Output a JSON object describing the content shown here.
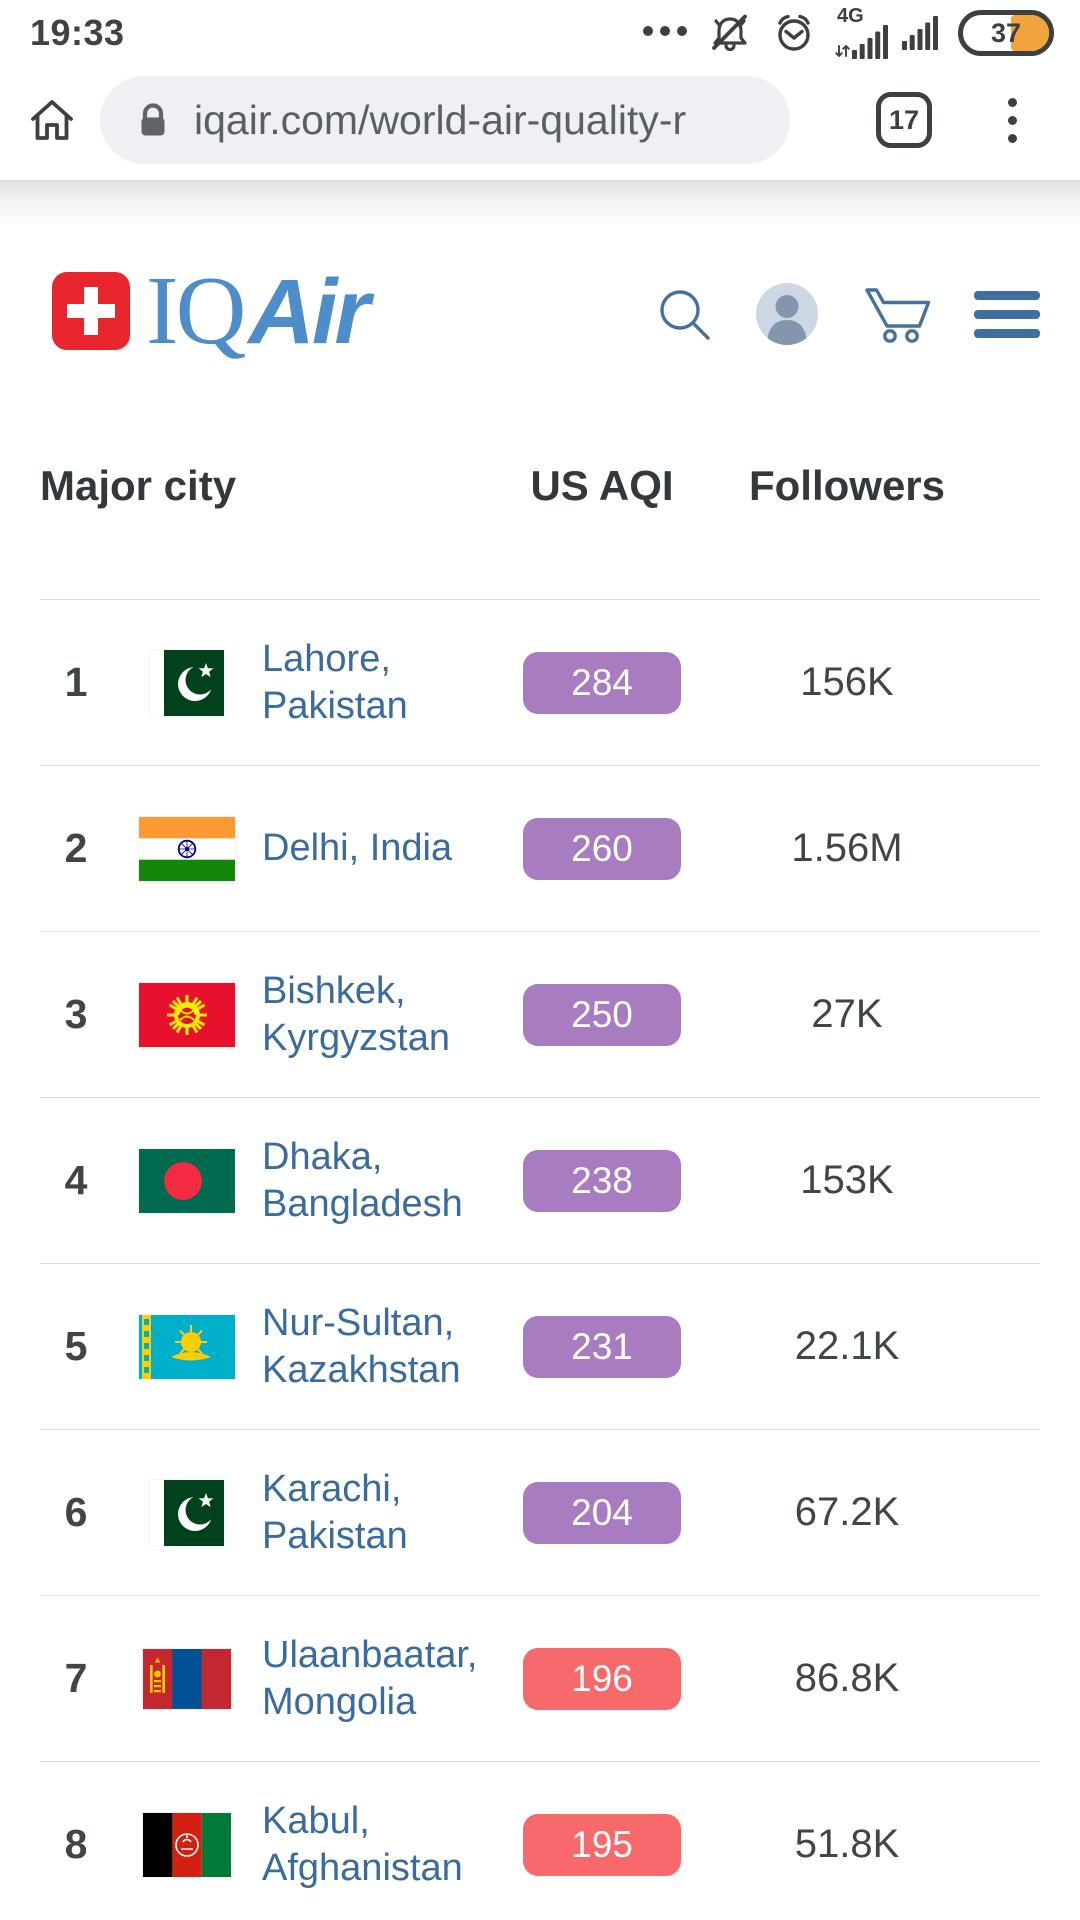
{
  "status_bar": {
    "time": "19:33",
    "network_label": "4G",
    "battery_percent": "37"
  },
  "browser_bar": {
    "url": "iqair.com/world-air-quality-r",
    "tab_count": "17"
  },
  "site_header": {
    "logo_text_iq": "IQ",
    "logo_text_air": "Air"
  },
  "table": {
    "col_city": "Major city",
    "col_aqi": "US AQI",
    "col_followers": "Followers",
    "rows": [
      {
        "rank": "1",
        "flag": "pakistan",
        "city": "Lahore, Pakistan",
        "aqi": "284",
        "aqi_color": "#a87cc1",
        "followers": "156K"
      },
      {
        "rank": "2",
        "flag": "india",
        "city": "Delhi, India",
        "aqi": "260",
        "aqi_color": "#a87cc1",
        "followers": "1.56M"
      },
      {
        "rank": "3",
        "flag": "kyrgyzstan",
        "city": "Bishkek, Kyrgyzstan",
        "aqi": "250",
        "aqi_color": "#a87cc1",
        "followers": "27K"
      },
      {
        "rank": "4",
        "flag": "bangladesh",
        "city": "Dhaka, Bangladesh",
        "aqi": "238",
        "aqi_color": "#a87cc1",
        "followers": "153K"
      },
      {
        "rank": "5",
        "flag": "kazakhstan",
        "city": "Nur-Sultan, Kazakhstan",
        "aqi": "231",
        "aqi_color": "#a87cc1",
        "followers": "22.1K"
      },
      {
        "rank": "6",
        "flag": "pakistan",
        "city": "Karachi, Pakistan",
        "aqi": "204",
        "aqi_color": "#a87cc1",
        "followers": "67.2K"
      },
      {
        "rank": "7",
        "flag": "mongolia",
        "city": "Ulaanbaatar, Mongolia",
        "aqi": "196",
        "aqi_color": "#f7696b",
        "followers": "86.8K"
      },
      {
        "rank": "8",
        "flag": "afghanistan",
        "city": "Kabul, Afghanistan",
        "aqi": "195",
        "aqi_color": "#f7696b",
        "followers": "51.8K"
      }
    ]
  },
  "colors": {
    "aqi_purple": "#a87cc1",
    "aqi_red": "#f7696b",
    "brand_blue": "#4d8dc9",
    "icon_blue": "#46719e",
    "link_blue": "#3a6b9f",
    "battery_orange": "#f2a33c"
  }
}
